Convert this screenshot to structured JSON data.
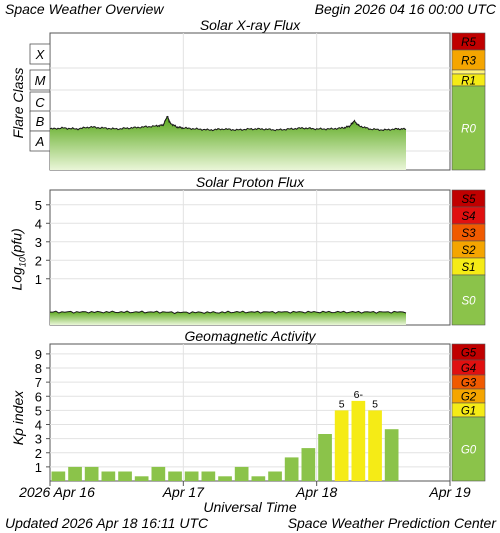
{
  "header": {
    "title": "Space Weather Overview",
    "begin": "Begin 2026 04 16 00:00 UTC",
    "updated": "Updated 2026 Apr 18 16:11 UTC",
    "center": "Space Weather Prediction Center"
  },
  "x_axis": {
    "label": "Universal Time",
    "ticks": [
      "2026 Apr 16",
      "Apr 17",
      "Apr 18",
      "Apr 19"
    ]
  },
  "colors": {
    "green": "#8bc34a",
    "yellow": "#f5eb16",
    "yellow_light": "#fff37a",
    "orange": "#f5a500",
    "red_orange": "#f05a00",
    "red": "#e01010",
    "dark_red": "#c00000",
    "grid": "#e2e2e2"
  },
  "chart_data": [
    {
      "type": "area",
      "title": "Solar X-ray Flux",
      "ylabel": "Flare Class",
      "y_classes": [
        "X",
        "M",
        "C",
        "B",
        "A"
      ],
      "scales": [
        {
          "label": "R5",
          "color": "#c00000"
        },
        {
          "label": "R3",
          "color": "#f5a500"
        },
        {
          "label": "",
          "color": "#fff37a"
        },
        {
          "label": "R1",
          "color": "#f5eb16"
        },
        {
          "label": "R0",
          "color": "#8bc34a"
        }
      ],
      "xlim_days": [
        0,
        3
      ],
      "series": [
        {
          "x_days": [
            0.0,
            0.1,
            0.2,
            0.3,
            0.4,
            0.5,
            0.6,
            0.7,
            0.8,
            0.85,
            0.88,
            0.9,
            0.95,
            1.0,
            1.1,
            1.2,
            1.3,
            1.4,
            1.5,
            1.6,
            1.7,
            1.8,
            1.9,
            2.0,
            2.1,
            2.2,
            2.25,
            2.28,
            2.32,
            2.4,
            2.5,
            2.6,
            2.67
          ],
          "flare_class": [
            2.1,
            2.15,
            2.1,
            2.2,
            2.15,
            2.1,
            2.15,
            2.2,
            2.25,
            2.3,
            2.75,
            2.4,
            2.2,
            2.15,
            2.1,
            2.05,
            2.1,
            2.05,
            2.1,
            2.1,
            2.05,
            2.1,
            2.15,
            2.1,
            2.1,
            2.15,
            2.25,
            2.5,
            2.25,
            2.1,
            2.05,
            2.1,
            2.1
          ]
        }
      ]
    },
    {
      "type": "area",
      "title": "Solar Proton Flux",
      "ylabel": "Log10(pfu)",
      "ylabel_main": "Log",
      "ylabel_sub": "10",
      "ylabel_tail": "(pfu)",
      "yticks": [
        "1",
        "2",
        "3",
        "4",
        "5"
      ],
      "ylim": [
        -1.5,
        5.8
      ],
      "scales": [
        {
          "label": "S5",
          "color": "#c00000"
        },
        {
          "label": "S4",
          "color": "#e01010"
        },
        {
          "label": "S3",
          "color": "#f05a00"
        },
        {
          "label": "S2",
          "color": "#f5a500"
        },
        {
          "label": "S1",
          "color": "#f5eb16"
        },
        {
          "label": "S0",
          "color": "#8bc34a"
        }
      ],
      "xlim_days": [
        0,
        3
      ],
      "series": [
        {
          "x_days": [
            0.0,
            0.5,
            1.0,
            1.5,
            2.0,
            2.5,
            2.67
          ],
          "log_pfu": [
            -0.8,
            -0.8,
            -0.82,
            -0.8,
            -0.8,
            -0.8,
            -0.8
          ]
        }
      ]
    },
    {
      "type": "bar",
      "title": "Geomagnetic Activity",
      "ylabel": "Kp index",
      "yticks": [
        "1",
        "2",
        "3",
        "4",
        "5",
        "6",
        "7",
        "8",
        "9"
      ],
      "ylim": [
        0,
        9.7
      ],
      "scales": [
        {
          "label": "G5",
          "color": "#c00000"
        },
        {
          "label": "G4",
          "color": "#e01010"
        },
        {
          "label": "G3",
          "color": "#f05a00"
        },
        {
          "label": "G2",
          "color": "#f5a500"
        },
        {
          "label": "G1",
          "color": "#f5eb16"
        },
        {
          "label": "G0",
          "color": "#8bc34a"
        }
      ],
      "values": [
        0.67,
        1.0,
        1.0,
        0.67,
        0.67,
        0.33,
        1.0,
        0.67,
        0.67,
        0.67,
        0.33,
        1.0,
        0.33,
        0.67,
        1.67,
        2.33,
        3.33,
        5.0,
        5.67,
        5.0,
        3.67
      ],
      "bar_labels": [
        "",
        "",
        "",
        "",
        "",
        "",
        "",
        "",
        "",
        "",
        "",
        "",
        "",
        "",
        "",
        "",
        "",
        "5",
        "6-",
        "5",
        ""
      ]
    }
  ]
}
